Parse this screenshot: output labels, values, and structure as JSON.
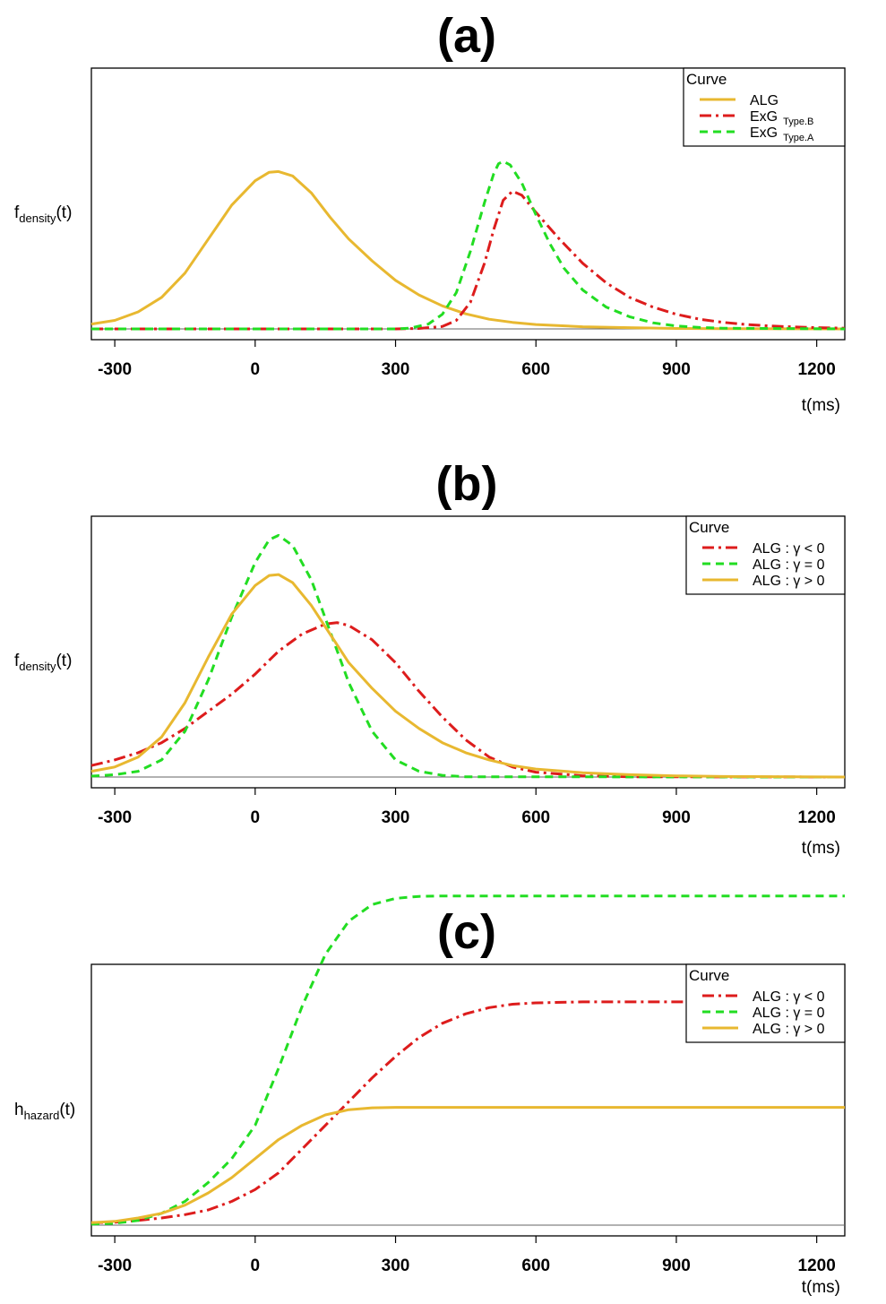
{
  "chart_data": [
    {
      "panel": "(a)",
      "type": "line",
      "title": "(a)",
      "xlabel": "t(ms)",
      "ylabel": {
        "main": "f",
        "sub": "density",
        "arg": "(t)"
      },
      "xlim": [
        -350,
        1260
      ],
      "ylim": [
        0,
        1
      ],
      "xticks": [
        -300,
        0,
        300,
        600,
        900,
        1200
      ],
      "legend": {
        "title": "Curve",
        "position": "top-right"
      },
      "series": [
        {
          "name": "ALG",
          "legend_main": "ALG",
          "legend_sub": "",
          "color": "#e8b830",
          "dash": "solid",
          "points": [
            [
              -350,
              0.02
            ],
            [
              -300,
              0.035
            ],
            [
              -250,
              0.07
            ],
            [
              -200,
              0.13
            ],
            [
              -150,
              0.23
            ],
            [
              -100,
              0.37
            ],
            [
              -50,
              0.51
            ],
            [
              0,
              0.61
            ],
            [
              30,
              0.645
            ],
            [
              50,
              0.648
            ],
            [
              80,
              0.63
            ],
            [
              120,
              0.56
            ],
            [
              160,
              0.46
            ],
            [
              200,
              0.37
            ],
            [
              250,
              0.28
            ],
            [
              300,
              0.2
            ],
            [
              350,
              0.14
            ],
            [
              400,
              0.095
            ],
            [
              450,
              0.062
            ],
            [
              500,
              0.04
            ],
            [
              550,
              0.027
            ],
            [
              600,
              0.018
            ],
            [
              700,
              0.009
            ],
            [
              800,
              0.005
            ],
            [
              900,
              0.002
            ],
            [
              1000,
              0.001
            ],
            [
              1260,
              0.0
            ]
          ]
        },
        {
          "name": "ExG Type.B",
          "legend_main": "ExG",
          "legend_sub": "Type.B",
          "color": "#dd1c1c",
          "dash": "dashdot",
          "points": [
            [
              -350,
              0.0
            ],
            [
              300,
              0.0
            ],
            [
              350,
              0.002
            ],
            [
              400,
              0.01
            ],
            [
              430,
              0.035
            ],
            [
              460,
              0.11
            ],
            [
              490,
              0.27
            ],
            [
              510,
              0.41
            ],
            [
              530,
              0.53
            ],
            [
              550,
              0.567
            ],
            [
              570,
              0.55
            ],
            [
              600,
              0.48
            ],
            [
              650,
              0.37
            ],
            [
              700,
              0.27
            ],
            [
              750,
              0.19
            ],
            [
              800,
              0.13
            ],
            [
              850,
              0.09
            ],
            [
              900,
              0.06
            ],
            [
              950,
              0.04
            ],
            [
              1000,
              0.027
            ],
            [
              1050,
              0.018
            ],
            [
              1100,
              0.012
            ],
            [
              1150,
              0.008
            ],
            [
              1200,
              0.005
            ],
            [
              1260,
              0.003
            ]
          ]
        },
        {
          "name": "ExG Type.A",
          "legend_main": "ExG",
          "legend_sub": "Type.A",
          "color": "#22dd22",
          "dash": "dashed",
          "points": [
            [
              -350,
              0.0
            ],
            [
              300,
              0.0
            ],
            [
              330,
              0.003
            ],
            [
              370,
              0.02
            ],
            [
              400,
              0.06
            ],
            [
              430,
              0.15
            ],
            [
              460,
              0.32
            ],
            [
              490,
              0.52
            ],
            [
              510,
              0.64
            ],
            [
              520,
              0.68
            ],
            [
              530,
              0.69
            ],
            [
              545,
              0.675
            ],
            [
              570,
              0.6
            ],
            [
              600,
              0.47
            ],
            [
              630,
              0.35
            ],
            [
              660,
              0.25
            ],
            [
              700,
              0.16
            ],
            [
              750,
              0.09
            ],
            [
              800,
              0.05
            ],
            [
              850,
              0.025
            ],
            [
              900,
              0.012
            ],
            [
              950,
              0.006
            ],
            [
              1000,
              0.003
            ],
            [
              1260,
              0.0
            ]
          ]
        }
      ]
    },
    {
      "panel": "(b)",
      "type": "line",
      "title": "(b)",
      "xlabel": "t(ms)",
      "ylabel": {
        "main": "f",
        "sub": "density",
        "arg": "(t)"
      },
      "xlim": [
        -350,
        1260
      ],
      "ylim": [
        0,
        1
      ],
      "xticks": [
        -300,
        0,
        300,
        600,
        900,
        1200
      ],
      "legend": {
        "title": "Curve",
        "position": "top-right"
      },
      "series": [
        {
          "name": "ALG:γ<0",
          "legend_main": "ALG : γ < 0",
          "legend_sub": "",
          "color": "#dd1c1c",
          "dash": "dashdot",
          "points": [
            [
              -350,
              0.04
            ],
            [
              -300,
              0.06
            ],
            [
              -250,
              0.085
            ],
            [
              -200,
              0.12
            ],
            [
              -150,
              0.17
            ],
            [
              -100,
              0.23
            ],
            [
              -50,
              0.29
            ],
            [
              0,
              0.36
            ],
            [
              50,
              0.44
            ],
            [
              100,
              0.5
            ],
            [
              150,
              0.535
            ],
            [
              175,
              0.54
            ],
            [
              200,
              0.53
            ],
            [
              250,
              0.48
            ],
            [
              300,
              0.4
            ],
            [
              350,
              0.3
            ],
            [
              400,
              0.21
            ],
            [
              450,
              0.13
            ],
            [
              500,
              0.07
            ],
            [
              550,
              0.035
            ],
            [
              600,
              0.017
            ],
            [
              700,
              0.004
            ],
            [
              800,
              0.001
            ],
            [
              1260,
              0.0
            ]
          ]
        },
        {
          "name": "ALG:γ=0",
          "legend_main": "ALG : γ = 0",
          "legend_sub": "",
          "color": "#22dd22",
          "dash": "dashed",
          "points": [
            [
              -350,
              0.003
            ],
            [
              -300,
              0.008
            ],
            [
              -250,
              0.02
            ],
            [
              -200,
              0.06
            ],
            [
              -150,
              0.16
            ],
            [
              -100,
              0.34
            ],
            [
              -50,
              0.56
            ],
            [
              0,
              0.75
            ],
            [
              30,
              0.83
            ],
            [
              50,
              0.845
            ],
            [
              80,
              0.81
            ],
            [
              120,
              0.69
            ],
            [
              160,
              0.51
            ],
            [
              200,
              0.33
            ],
            [
              250,
              0.16
            ],
            [
              300,
              0.06
            ],
            [
              350,
              0.02
            ],
            [
              400,
              0.006
            ],
            [
              450,
              0.001
            ],
            [
              1260,
              0.0
            ]
          ]
        },
        {
          "name": "ALG:γ>0",
          "legend_main": "ALG : γ > 0",
          "legend_sub": "",
          "color": "#e8b830",
          "dash": "solid",
          "points": [
            [
              -350,
              0.02
            ],
            [
              -300,
              0.035
            ],
            [
              -250,
              0.07
            ],
            [
              -200,
              0.14
            ],
            [
              -150,
              0.26
            ],
            [
              -100,
              0.42
            ],
            [
              -50,
              0.57
            ],
            [
              0,
              0.67
            ],
            [
              30,
              0.705
            ],
            [
              50,
              0.708
            ],
            [
              80,
              0.68
            ],
            [
              120,
              0.6
            ],
            [
              160,
              0.5
            ],
            [
              200,
              0.4
            ],
            [
              250,
              0.31
            ],
            [
              300,
              0.23
            ],
            [
              350,
              0.17
            ],
            [
              400,
              0.12
            ],
            [
              450,
              0.085
            ],
            [
              500,
              0.06
            ],
            [
              550,
              0.04
            ],
            [
              600,
              0.028
            ],
            [
              700,
              0.015
            ],
            [
              800,
              0.008
            ],
            [
              900,
              0.004
            ],
            [
              1000,
              0.002
            ],
            [
              1260,
              0.0
            ]
          ]
        }
      ]
    },
    {
      "panel": "(c)",
      "type": "line",
      "title": "(c)",
      "xlabel": "t(ms)",
      "ylabel": {
        "main": "h",
        "sub": "hazard",
        "arg": "(t)"
      },
      "xlim": [
        -350,
        1260
      ],
      "ylim": [
        0,
        1
      ],
      "xticks": [
        -300,
        0,
        300,
        600,
        900,
        1200
      ],
      "legend": {
        "title": "Curve",
        "position": "top-right"
      },
      "series": [
        {
          "name": "ALG:γ<0",
          "legend_main": "ALG : γ < 0",
          "legend_sub": "",
          "color": "#dd1c1c",
          "dash": "dashdot",
          "points": [
            [
              -350,
              0.005
            ],
            [
              -300,
              0.006
            ],
            [
              -250,
              0.01
            ],
            [
              -200,
              0.015
            ],
            [
              -150,
              0.022
            ],
            [
              -100,
              0.032
            ],
            [
              -50,
              0.05
            ],
            [
              0,
              0.075
            ],
            [
              50,
              0.11
            ],
            [
              100,
              0.16
            ],
            [
              150,
              0.21
            ],
            [
              200,
              0.26
            ],
            [
              250,
              0.31
            ],
            [
              300,
              0.355
            ],
            [
              350,
              0.395
            ],
            [
              400,
              0.425
            ],
            [
              450,
              0.445
            ],
            [
              500,
              0.458
            ],
            [
              550,
              0.465
            ],
            [
              600,
              0.468
            ],
            [
              700,
              0.47
            ],
            [
              800,
              0.47
            ],
            [
              1260,
              0.47
            ]
          ]
        },
        {
          "name": "ALG:γ=0",
          "legend_main": "ALG : γ = 0",
          "legend_sub": "",
          "color": "#22dd22",
          "dash": "dashed",
          "points": [
            [
              -350,
              0.002
            ],
            [
              -300,
              0.004
            ],
            [
              -250,
              0.01
            ],
            [
              -200,
              0.025
            ],
            [
              -150,
              0.05
            ],
            [
              -100,
              0.09
            ],
            [
              -50,
              0.14
            ],
            [
              0,
              0.21
            ],
            [
              50,
              0.33
            ],
            [
              100,
              0.46
            ],
            [
              150,
              0.57
            ],
            [
              200,
              0.64
            ],
            [
              250,
              0.675
            ],
            [
              300,
              0.688
            ],
            [
              350,
              0.692
            ],
            [
              400,
              0.693
            ],
            [
              1260,
              0.693
            ]
          ]
        },
        {
          "name": "ALG:γ>0",
          "legend_main": "ALG : γ > 0",
          "legend_sub": "",
          "color": "#e8b830",
          "dash": "solid",
          "points": [
            [
              -350,
              0.005
            ],
            [
              -300,
              0.008
            ],
            [
              -250,
              0.015
            ],
            [
              -200,
              0.025
            ],
            [
              -150,
              0.042
            ],
            [
              -100,
              0.068
            ],
            [
              -50,
              0.1
            ],
            [
              0,
              0.14
            ],
            [
              50,
              0.18
            ],
            [
              100,
              0.21
            ],
            [
              150,
              0.232
            ],
            [
              200,
              0.243
            ],
            [
              250,
              0.247
            ],
            [
              300,
              0.248
            ],
            [
              1260,
              0.248
            ]
          ]
        }
      ]
    }
  ]
}
